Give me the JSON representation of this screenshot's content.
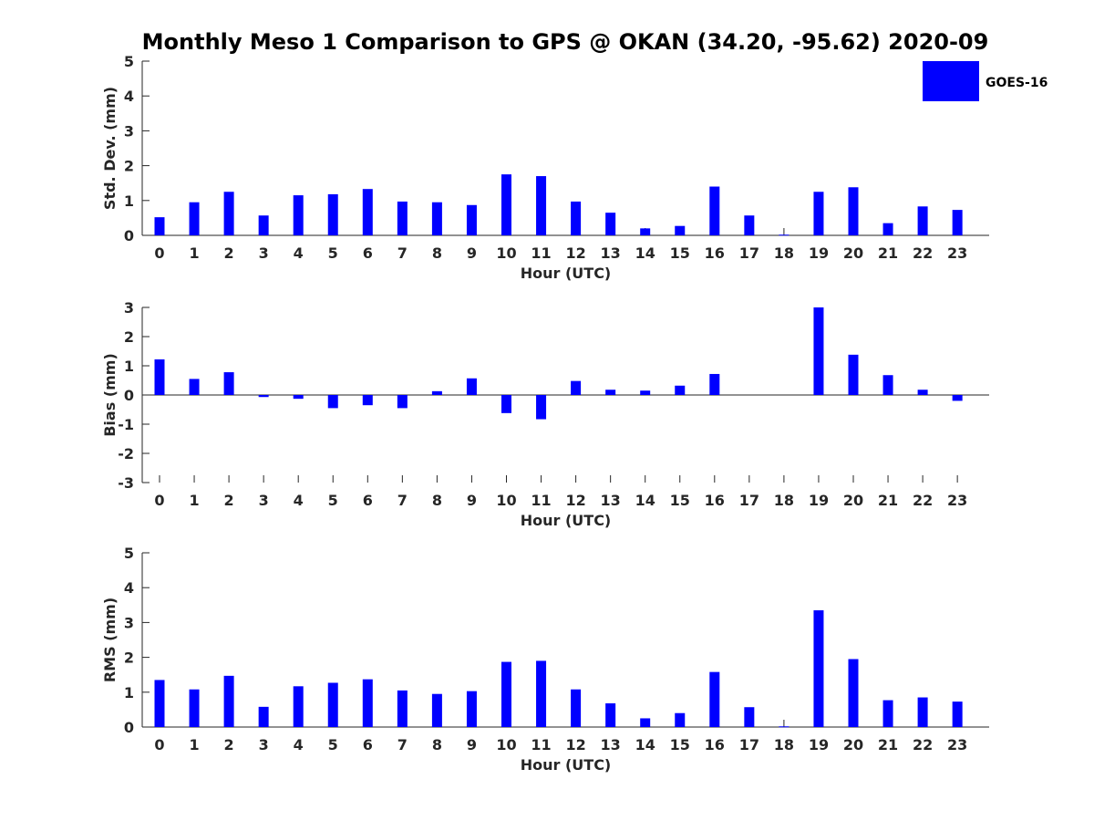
{
  "chart_data": {
    "title": "Monthly Meso 1 Comparison to GPS @ OKAN (34.20, -95.62) 2020-09",
    "legend": {
      "label": "GOES-16",
      "color": "#0000ff",
      "placement": "top-right"
    },
    "bar_color": "#0000ff",
    "categories": [
      "0",
      "1",
      "2",
      "3",
      "4",
      "5",
      "6",
      "7",
      "8",
      "9",
      "10",
      "11",
      "12",
      "13",
      "14",
      "15",
      "16",
      "17",
      "18",
      "19",
      "20",
      "21",
      "22",
      "23"
    ],
    "panels": [
      {
        "type": "bar",
        "xlabel": "Hour (UTC)",
        "ylabel": "Std. Dev. (mm)",
        "ylim": [
          0,
          5
        ],
        "yticks": [
          "0",
          "1",
          "2",
          "3",
          "4",
          "5"
        ],
        "values": [
          0.52,
          0.95,
          1.25,
          0.57,
          1.15,
          1.18,
          1.33,
          0.97,
          0.95,
          0.87,
          1.75,
          1.7,
          0.97,
          0.65,
          0.2,
          0.27,
          1.4,
          0.57,
          0.02,
          1.25,
          1.38,
          0.35,
          0.83,
          0.73
        ]
      },
      {
        "type": "bar",
        "xlabel": "Hour (UTC)",
        "ylabel": "Bias (mm)",
        "ylim": [
          -3,
          3
        ],
        "yticks": [
          "-3",
          "-2",
          "-1",
          "0",
          "1",
          "2",
          "3"
        ],
        "values": [
          1.22,
          0.55,
          0.78,
          -0.07,
          -0.13,
          -0.45,
          -0.35,
          -0.45,
          0.13,
          0.57,
          -0.62,
          -0.83,
          0.48,
          0.18,
          0.15,
          0.32,
          0.72,
          0.0,
          0.0,
          3.0,
          1.38,
          0.68,
          0.18,
          -0.2
        ]
      },
      {
        "type": "bar",
        "xlabel": "Hour (UTC)",
        "ylabel": "RMS (mm)",
        "ylim": [
          0,
          5
        ],
        "yticks": [
          "0",
          "1",
          "2",
          "3",
          "4",
          "5"
        ],
        "values": [
          1.35,
          1.08,
          1.47,
          0.58,
          1.17,
          1.27,
          1.37,
          1.05,
          0.95,
          1.03,
          1.87,
          1.9,
          1.08,
          0.68,
          0.25,
          0.4,
          1.58,
          0.57,
          0.02,
          3.35,
          1.95,
          0.77,
          0.85,
          0.73
        ]
      }
    ]
  }
}
